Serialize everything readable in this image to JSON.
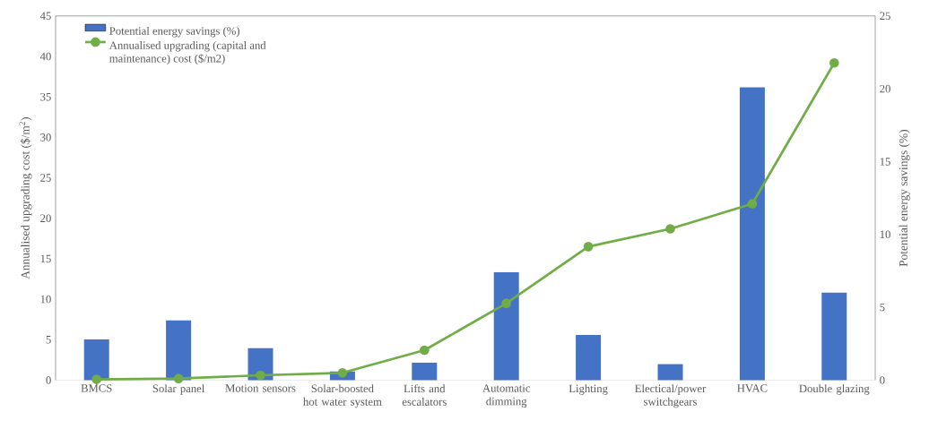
{
  "chart_data": {
    "type": "bar",
    "categories": [
      "BMCS",
      "Solar panel",
      "Motion sensors",
      "Solar-boosted hot water system",
      "Lifts and escalators",
      "Automatic dimming",
      "Lighting",
      "Electical/power switchgears",
      "HVAC",
      "Double glazing"
    ],
    "series": [
      {
        "name": "Potential energy savings (%)",
        "axis": "y2",
        "color": "#4472c4",
        "values": [
          2.8,
          4.1,
          2.2,
          0.6,
          1.2,
          7.4,
          3.1,
          1.1,
          20.1,
          6.0
        ]
      },
      {
        "name": "Annualised upgrading (capital and maintenance) cost ($/m2)",
        "type": "line",
        "marker": "circle",
        "color": "#70ad47",
        "values": [
          0.1,
          0.2,
          0.6,
          0.9,
          3.7,
          9.5,
          16.5,
          18.7,
          21.8,
          39.2
        ]
      }
    ],
    "ylabel": "Annualised upgrading cost ($/m$^{2}$)",
    "y2label": "Potential energy savings (%)",
    "ylim": [
      0,
      45
    ],
    "yticks": [
      0,
      5,
      10,
      15,
      20,
      25,
      30,
      35,
      40,
      45
    ],
    "y2lim": [
      0,
      25
    ],
    "y2ticks": [
      0,
      5,
      10,
      15,
      20,
      25
    ],
    "legend": "top left"
  }
}
